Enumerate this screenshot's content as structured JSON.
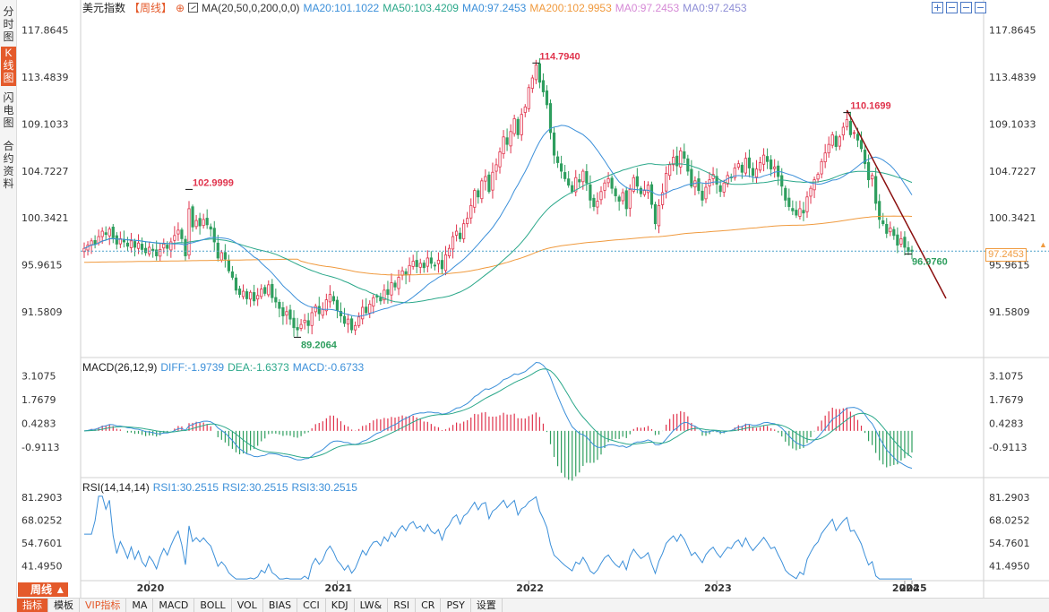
{
  "sidebar": {
    "tabs": [
      {
        "label": "分时图",
        "active": false
      },
      {
        "label": "K线图",
        "active": true
      },
      {
        "label": "闪电图",
        "active": false
      },
      {
        "label": "合约资料",
        "active": false
      }
    ]
  },
  "header": {
    "title": "美元指数",
    "period": "【周线】",
    "settings_glyph": "⊕",
    "ma_params": "MA(20,50,0,200,0,0)",
    "ma_values": [
      {
        "text": "MA20:101.1022",
        "color": "#3b8fd9"
      },
      {
        "text": "MA50:103.4209",
        "color": "#2ba88a"
      },
      {
        "text": "MA0:97.2453",
        "color": "#3b8fd9"
      },
      {
        "text": "MA200:102.9953",
        "color": "#f09a3e"
      },
      {
        "text": "MA0:97.2453",
        "color": "#d68ad6"
      },
      {
        "text": "MA0:97.2453",
        "color": "#8e8ed6"
      }
    ]
  },
  "toolbar": {
    "buttons": [
      "zoom-in-button",
      "zoom-out-button",
      "move-left-button",
      "move-right-button"
    ]
  },
  "last_price_tag": "97.2453",
  "macd_header": {
    "name": "MACD(26,12,9)",
    "diff": "DIFF:-1.9739",
    "dea": "DEA:-1.6373",
    "macd": "MACD:-0.6733"
  },
  "rsi_header": {
    "name": "RSI(14,14,14)",
    "rsi1": "RSI1:30.2515",
    "rsi2": "RSI2:30.2515",
    "rsi3": "RSI3:30.2515"
  },
  "period_button": "周线 ▲",
  "indicator_tabs": [
    "指标",
    "模板",
    "VIP指标",
    "MA",
    "MACD",
    "BOLL",
    "VOL",
    "BIAS",
    "CCI",
    "KDJ",
    "LW&",
    "RSI",
    "CR",
    "PSY",
    "设置"
  ],
  "colors": {
    "up": "#e0334c",
    "down": "#2e9e5e",
    "ma20": "#3b8fd9",
    "ma50": "#2ba88a",
    "ma200": "#f09a3e",
    "trendline": "#8b1010",
    "accent": "#e45a2b"
  },
  "chart_data": [
    {
      "type": "candlestick",
      "y_ticks": [
        "117.8645",
        "113.4839",
        "109.1033",
        "104.7227",
        "100.3421",
        "95.9615",
        "91.5809"
      ],
      "ylim": [
        87.4,
        119.0
      ],
      "x_labels": [
        "2020",
        "2021",
        "2022",
        "2023",
        "2024",
        "2025"
      ],
      "annotations": [
        {
          "label": "102.9999",
          "kind": "high"
        },
        {
          "label": "89.2064",
          "kind": "low"
        },
        {
          "label": "114.7940",
          "kind": "high"
        },
        {
          "label": "110.1699",
          "kind": "high"
        },
        {
          "label": "96.9760",
          "kind": "low"
        }
      ],
      "last_close": 97.2453,
      "closes": [
        97.5,
        97.8,
        98.2,
        97.9,
        98.6,
        99.1,
        98.8,
        99.3,
        98.5,
        97.9,
        98.4,
        98.1,
        97.7,
        98.2,
        97.6,
        98.0,
        97.4,
        97.1,
        97.6,
        97.3,
        96.8,
        97.4,
        97.9,
        97.5,
        98.1,
        98.7,
        99.2,
        98.4,
        96.8,
        101.2,
        99.5,
        100.1,
        99.6,
        100.2,
        99.7,
        99.3,
        98.1,
        96.6,
        97.1,
        96.5,
        95.4,
        94.8,
        93.6,
        93.2,
        93.5,
        92.8,
        93.4,
        92.6,
        93.1,
        93.7,
        93.3,
        94.1,
        92.9,
        92.5,
        91.9,
        91.2,
        91.6,
        90.9,
        90.1,
        89.9,
        90.4,
        90.8,
        90.3,
        91.5,
        92.1,
        91.4,
        91.8,
        92.7,
        93.2,
        92.6,
        91.7,
        91.2,
        90.5,
        90.9,
        89.9,
        90.3,
        91.1,
        92.0,
        91.5,
        92.3,
        92.9,
        93.0,
        92.6,
        93.6,
        93.2,
        94.3,
        93.9,
        94.8,
        95.4,
        95.0,
        95.9,
        96.3,
        95.8,
        96.1,
        95.7,
        96.6,
        96.1,
        95.9,
        96.4,
        95.6,
        96.9,
        97.5,
        98.6,
        99.1,
        98.4,
        99.8,
        100.3,
        101.5,
        102.9,
        102.3,
        103.8,
        104.2,
        102.8,
        104.6,
        105.3,
        106.5,
        107.9,
        107.2,
        108.4,
        109.6,
        108.1,
        110.0,
        110.7,
        112.5,
        113.4,
        114.6,
        113.0,
        112.1,
        110.9,
        108.3,
        106.2,
        105.5,
        104.7,
        104.0,
        103.4,
        102.8,
        104.1,
        103.7,
        104.7,
        103.6,
        102.0,
        101.4,
        101.9,
        102.8,
        103.6,
        104.0,
        103.1,
        102.4,
        101.9,
        102.7,
        101.2,
        103.0,
        104.1,
        103.3,
        102.6,
        102.9,
        103.4,
        101.6,
        99.8,
        101.5,
        102.7,
        104.5,
        105.3,
        106.0,
        105.2,
        106.6,
        105.9,
        104.7,
        103.3,
        103.8,
        102.9,
        102.0,
        103.2,
        103.9,
        104.4,
        103.5,
        102.8,
        103.6,
        104.3,
        104.1,
        105.0,
        105.4,
        104.6,
        105.9,
        105.0,
        104.3,
        104.9,
        105.5,
        106.2,
        105.6,
        104.9,
        105.1,
        104.2,
        103.3,
        102.0,
        101.4,
        101.0,
        100.6,
        101.2,
        100.8,
        102.3,
        103.1,
        103.9,
        104.4,
        105.6,
        106.4,
        107.2,
        108.1,
        107.0,
        107.9,
        108.8,
        109.5,
        108.1,
        108.3,
        107.6,
        106.8,
        105.4,
        103.9,
        104.3,
        101.7,
        100.2,
        99.8,
        98.9,
        99.4,
        98.7,
        97.8,
        98.4,
        97.6,
        97.2,
        97.2
      ]
    },
    {
      "type": "macd",
      "params": "MACD(26,12,9)",
      "y_ticks": [
        "3.1075",
        "1.7679",
        "0.4283",
        "-0.9113"
      ],
      "ylim": [
        -2.6,
        3.5
      ],
      "series": [
        "DIFF",
        "DEA",
        "MACD"
      ],
      "last": {
        "DIFF": -1.9739,
        "DEA": -1.6373,
        "MACD": -0.6733
      }
    },
    {
      "type": "line",
      "params": "RSI(14,14,14)",
      "y_ticks": [
        "81.2903",
        "68.0252",
        "54.7601",
        "41.4950"
      ],
      "ylim": [
        33.0,
        85.0
      ],
      "series": [
        "RSI1",
        "RSI2",
        "RSI3"
      ],
      "last": {
        "RSI1": 30.2515,
        "RSI2": 30.2515,
        "RSI3": 30.2515
      }
    }
  ]
}
